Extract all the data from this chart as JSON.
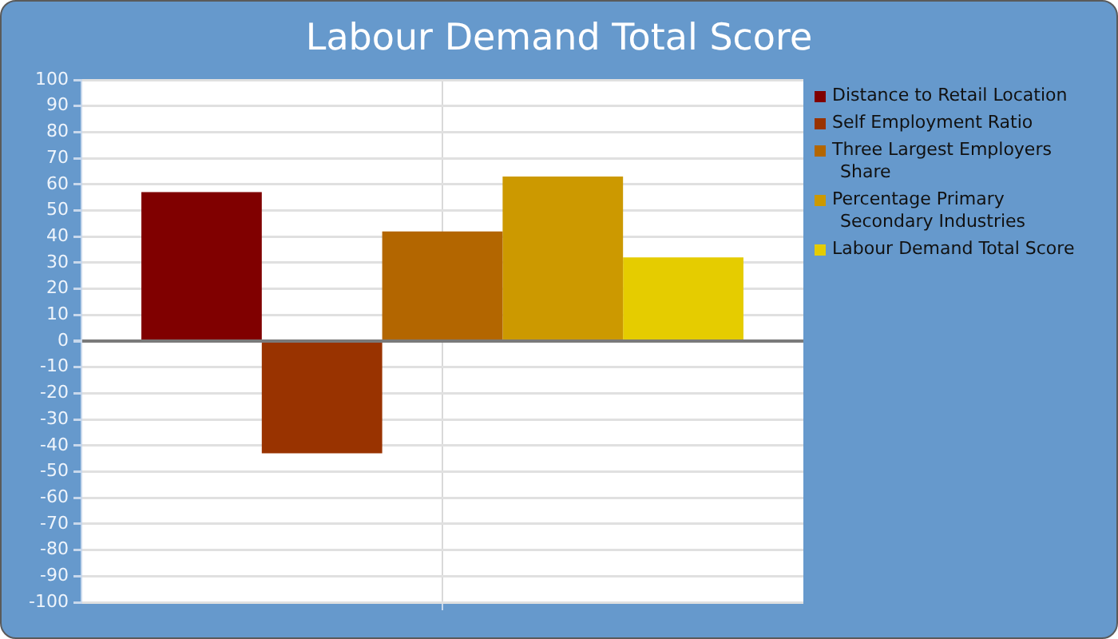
{
  "chart_data": {
    "type": "bar",
    "title": "Labour Demand Total Score",
    "categories": [
      null
    ],
    "series": [
      {
        "name": "Distance to Retail Location",
        "color": "#800000",
        "values": [
          57
        ]
      },
      {
        "name": "Self Employment Ratio",
        "color": "#993300",
        "values": [
          -43
        ]
      },
      {
        "name": "Three Largest Employers Share",
        "color": "#b36600",
        "values": [
          42
        ]
      },
      {
        "name": "Percentage Primary Secondary Industries",
        "color": "#cc9900",
        "values": [
          63
        ]
      },
      {
        "name": "Labour Demand Total Score",
        "color": "#e5cc00",
        "values": [
          32
        ]
      }
    ],
    "ylim": [
      -100,
      100
    ],
    "yticks": [
      -100,
      -90,
      -80,
      -70,
      -60,
      -50,
      -40,
      -30,
      -20,
      -10,
      0,
      10,
      20,
      30,
      40,
      50,
      60,
      70,
      80,
      90,
      100
    ],
    "grid": true,
    "legend": "top right"
  }
}
